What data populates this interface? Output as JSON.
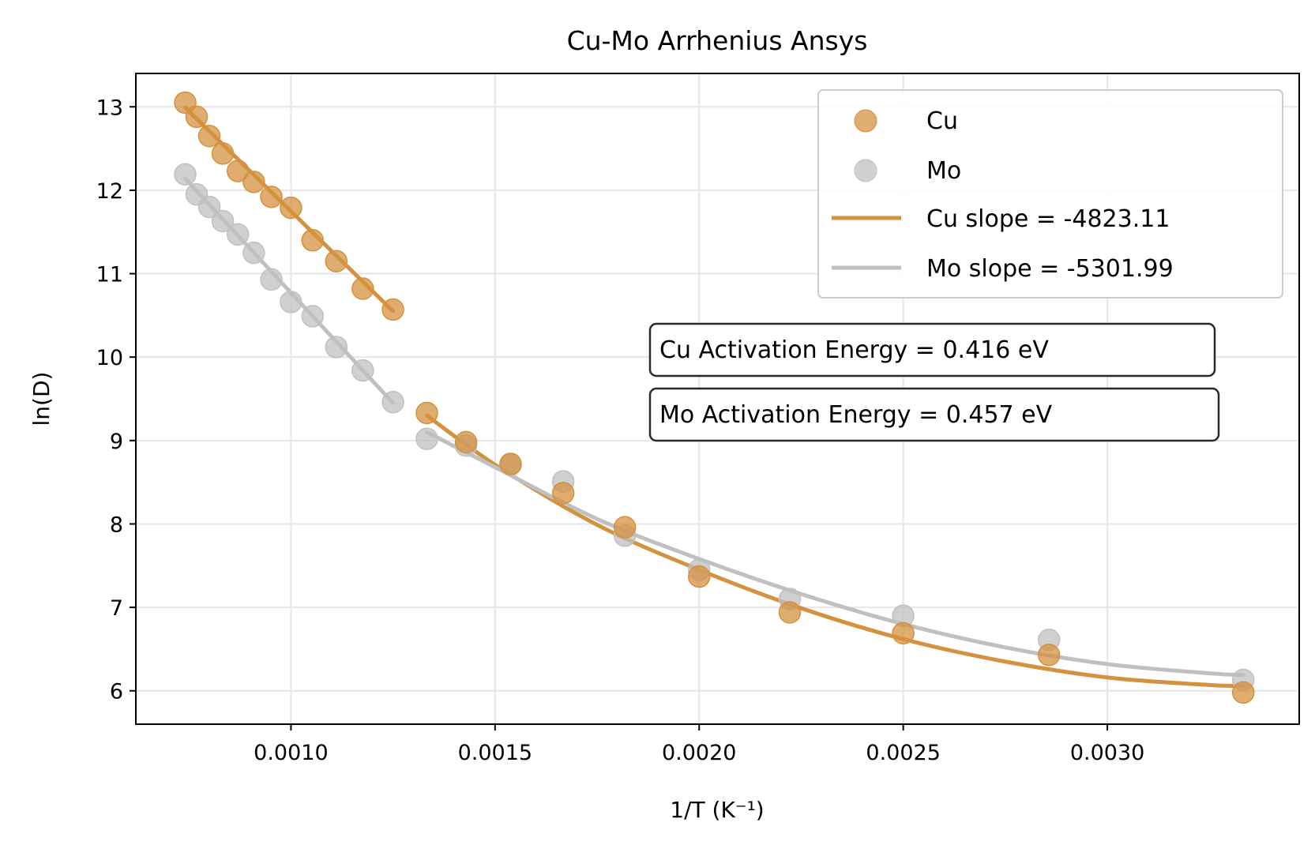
{
  "chart_data": {
    "type": "scatter",
    "title": "Cu-Mo Arrhenius Ansys",
    "xlabel": "1/T (K⁻¹)",
    "ylabel": "ln(D)",
    "xlim": [
      0.00062,
      0.00347
    ],
    "ylim": [
      5.6,
      13.4
    ],
    "xticks": [
      "0.0010",
      "0.0015",
      "0.0020",
      "0.0025",
      "0.0030"
    ],
    "xtick_values": [
      0.001,
      0.0015,
      0.002,
      0.0025,
      0.003
    ],
    "yticks": [
      "6",
      "7",
      "8",
      "9",
      "10",
      "11",
      "12",
      "13"
    ],
    "ytick_values": [
      6,
      7,
      8,
      9,
      10,
      11,
      12,
      13
    ],
    "grid": true,
    "legend_position": "upper right",
    "colors": {
      "cu": "#d4913f",
      "mo": "#c0c0c0"
    },
    "series": [
      {
        "name": "Cu",
        "kind": "scatter",
        "x": [
          0.000741,
          0.000769,
          0.0008,
          0.000833,
          0.00087,
          0.000909,
          0.000952,
          0.001,
          0.001053,
          0.001111,
          0.001176,
          0.00125,
          0.001333,
          0.001429,
          0.001538,
          0.001667,
          0.001818,
          0.002,
          0.002222,
          0.0025,
          0.002857,
          0.003333
        ],
        "y": [
          13.05,
          12.88,
          12.65,
          12.44,
          12.23,
          12.1,
          11.92,
          11.79,
          11.4,
          11.15,
          10.82,
          10.57,
          9.33,
          8.98,
          8.72,
          8.37,
          7.96,
          7.37,
          6.94,
          6.69,
          6.43,
          5.98
        ]
      },
      {
        "name": "Mo",
        "kind": "scatter",
        "x": [
          0.000741,
          0.000769,
          0.0008,
          0.000833,
          0.00087,
          0.000909,
          0.000952,
          0.001,
          0.001053,
          0.001111,
          0.001176,
          0.00125,
          0.001333,
          0.001429,
          0.001538,
          0.001667,
          0.001818,
          0.002,
          0.002222,
          0.0025,
          0.002857,
          0.003333
        ],
        "y": [
          12.19,
          11.95,
          11.8,
          11.63,
          11.47,
          11.25,
          10.93,
          10.66,
          10.49,
          10.12,
          9.84,
          9.46,
          9.02,
          8.94,
          8.71,
          8.51,
          7.86,
          7.45,
          7.1,
          6.9,
          6.61,
          6.13
        ]
      },
      {
        "name": "Cu slope = -4823.11",
        "kind": "line",
        "segments": [
          {
            "x": [
              0.000741,
              0.00125
            ],
            "y": [
              12.99,
              10.55
            ]
          },
          {
            "x": [
              0.001333,
              0.0015,
              0.00175,
              0.002,
              0.00225,
              0.0025,
              0.00275,
              0.003,
              0.00325,
              0.003333
            ],
            "y": [
              9.3,
              8.71,
              7.99,
              7.45,
              6.99,
              6.62,
              6.35,
              6.16,
              6.07,
              6.06
            ]
          }
        ]
      },
      {
        "name": "Mo slope = -5301.99",
        "kind": "line",
        "segments": [
          {
            "x": [
              0.000741,
              0.00125
            ],
            "y": [
              12.14,
              9.45
            ]
          },
          {
            "x": [
              0.001333,
              0.0015,
              0.00175,
              0.002,
              0.00225,
              0.0025,
              0.00275,
              0.003,
              0.00325,
              0.003333
            ],
            "y": [
              9.1,
              8.68,
              8.06,
              7.58,
              7.16,
              6.8,
              6.52,
              6.32,
              6.21,
              6.19
            ]
          }
        ]
      }
    ],
    "annotations": [
      "Cu Activation Energy = 0.416 eV",
      "Mo Activation Energy = 0.457 eV"
    ]
  }
}
